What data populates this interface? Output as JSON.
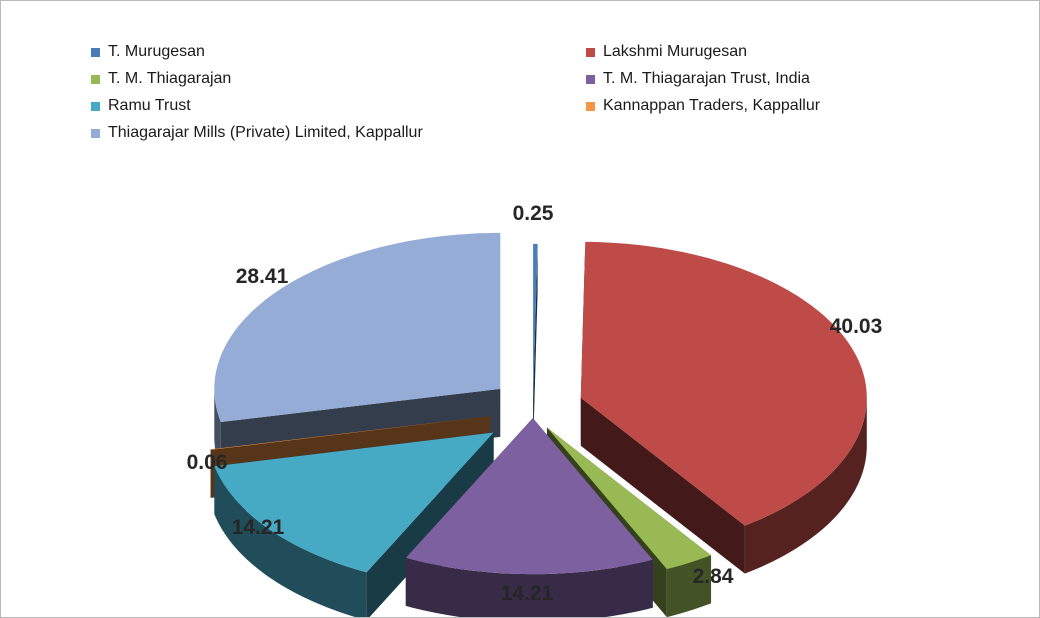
{
  "chart_data": {
    "type": "pie",
    "variant": "exploded-3d",
    "legend_position": "top",
    "series": [
      {
        "name": "T. Murugesan",
        "value": 0.25,
        "color": "#4a7ebb"
      },
      {
        "name": "Lakshmi Murugesan",
        "value": 40.03,
        "color": "#be4b48"
      },
      {
        "name": "T. M. Thiagarajan",
        "value": 2.84,
        "color": "#98b954"
      },
      {
        "name": "T. M. Thiagarajan Trust, India",
        "value": 14.21,
        "color": "#7d60a0"
      },
      {
        "name": "Ramu Trust",
        "value": 14.21,
        "color": "#46aac5"
      },
      {
        "name": "Kannappan Traders, Kappallur",
        "value": 0.06,
        "color": "#f79646"
      },
      {
        "name": "Thiagarajar Mills (Private) Limited, Kappallur",
        "value": 28.41,
        "color": "#95add6"
      }
    ],
    "data_labels": [
      "0.25",
      "40.03",
      "2.84",
      "14.21",
      "14.21",
      "0.06",
      "28.41"
    ]
  }
}
